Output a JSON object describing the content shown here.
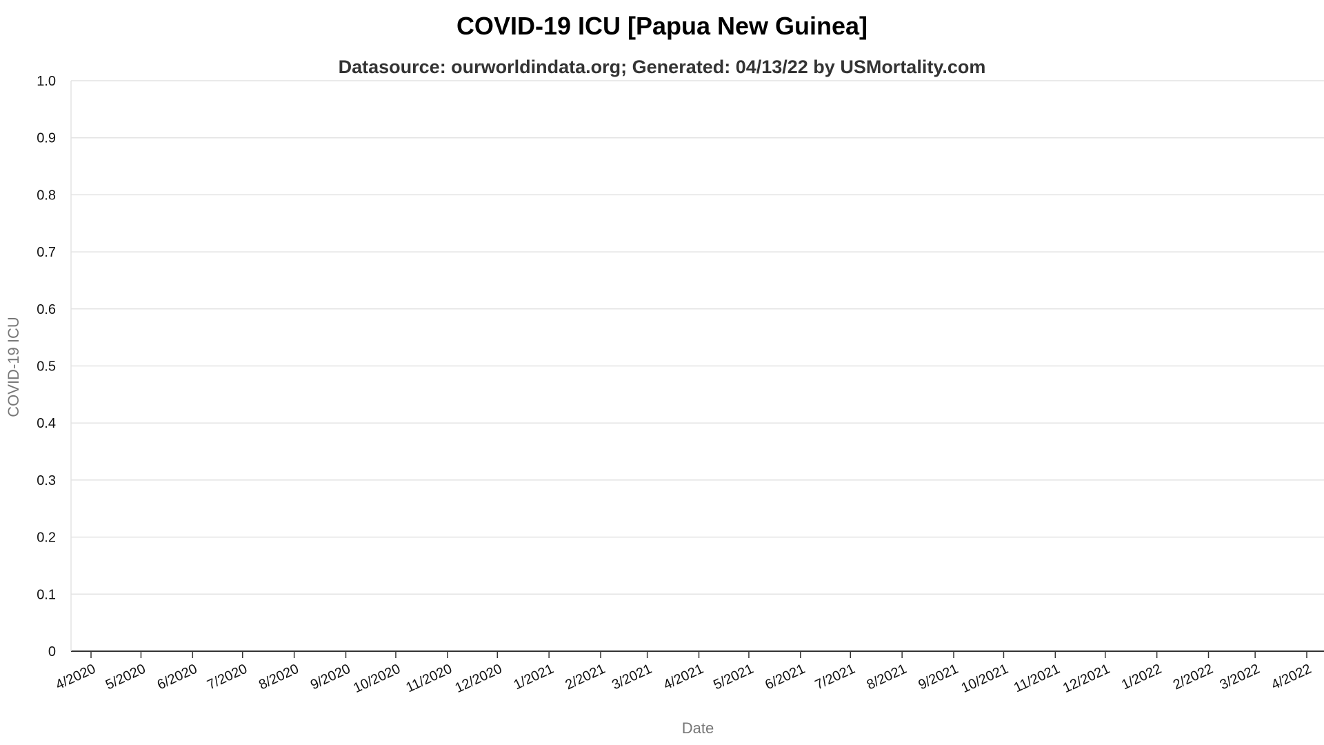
{
  "chart_data": {
    "type": "line",
    "title": "COVID-19 ICU [Papua New Guinea]",
    "subtitle": "Datasource: ourworldindata.org; Generated: 04/13/22 by USMortality.com",
    "xlabel": "Date",
    "ylabel": "COVID-19 ICU",
    "ylim": [
      0,
      1
    ],
    "y_ticks": [
      "0",
      "0.1",
      "0.2",
      "0.3",
      "0.4",
      "0.5",
      "0.6",
      "0.7",
      "0.8",
      "0.9",
      "1.0"
    ],
    "x_ticks": [
      "4/2020",
      "5/2020",
      "6/2020",
      "7/2020",
      "8/2020",
      "9/2020",
      "10/2020",
      "11/2020",
      "12/2020",
      "1/2021",
      "2/2021",
      "3/2021",
      "4/2021",
      "5/2021",
      "6/2021",
      "7/2021",
      "8/2021",
      "9/2021",
      "10/2021",
      "11/2021",
      "12/2021",
      "1/2022",
      "2/2022",
      "3/2022",
      "4/2022"
    ],
    "grid": true,
    "series": []
  }
}
